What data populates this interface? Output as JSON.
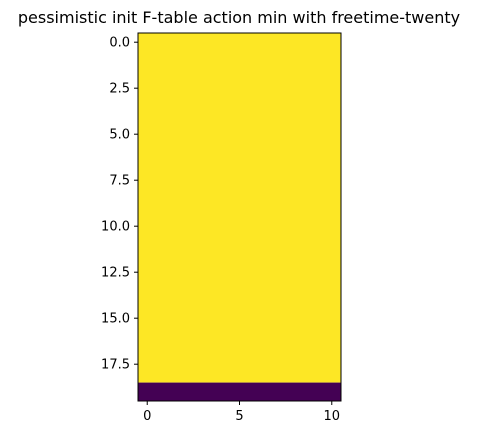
{
  "chart_data": {
    "type": "heatmap",
    "title": "pessimistic init F-table action min with freetime-twenty",
    "xlabel": "",
    "ylabel": "",
    "xlim": [
      -0.5,
      10.5
    ],
    "ylim": [
      19.5,
      -0.5
    ],
    "xticks": [
      0,
      5,
      10
    ],
    "xtick_labels": [
      "0",
      "5",
      "10"
    ],
    "yticks": [
      0.0,
      2.5,
      5.0,
      7.5,
      10.0,
      12.5,
      15.0,
      17.5
    ],
    "ytick_labels": [
      "0.0",
      "2.5",
      "5.0",
      "7.5",
      "10.0",
      "12.5",
      "15.0",
      "17.5"
    ],
    "grid": false,
    "colormap": "viridis",
    "n_rows": 20,
    "n_cols": 11,
    "regions": [
      {
        "rows": [
          0,
          18
        ],
        "cols": [
          0,
          10
        ],
        "value": 1,
        "color": "#fde725"
      },
      {
        "rows": [
          19,
          19
        ],
        "cols": [
          0,
          10
        ],
        "value": 0,
        "color": "#440154"
      }
    ]
  }
}
